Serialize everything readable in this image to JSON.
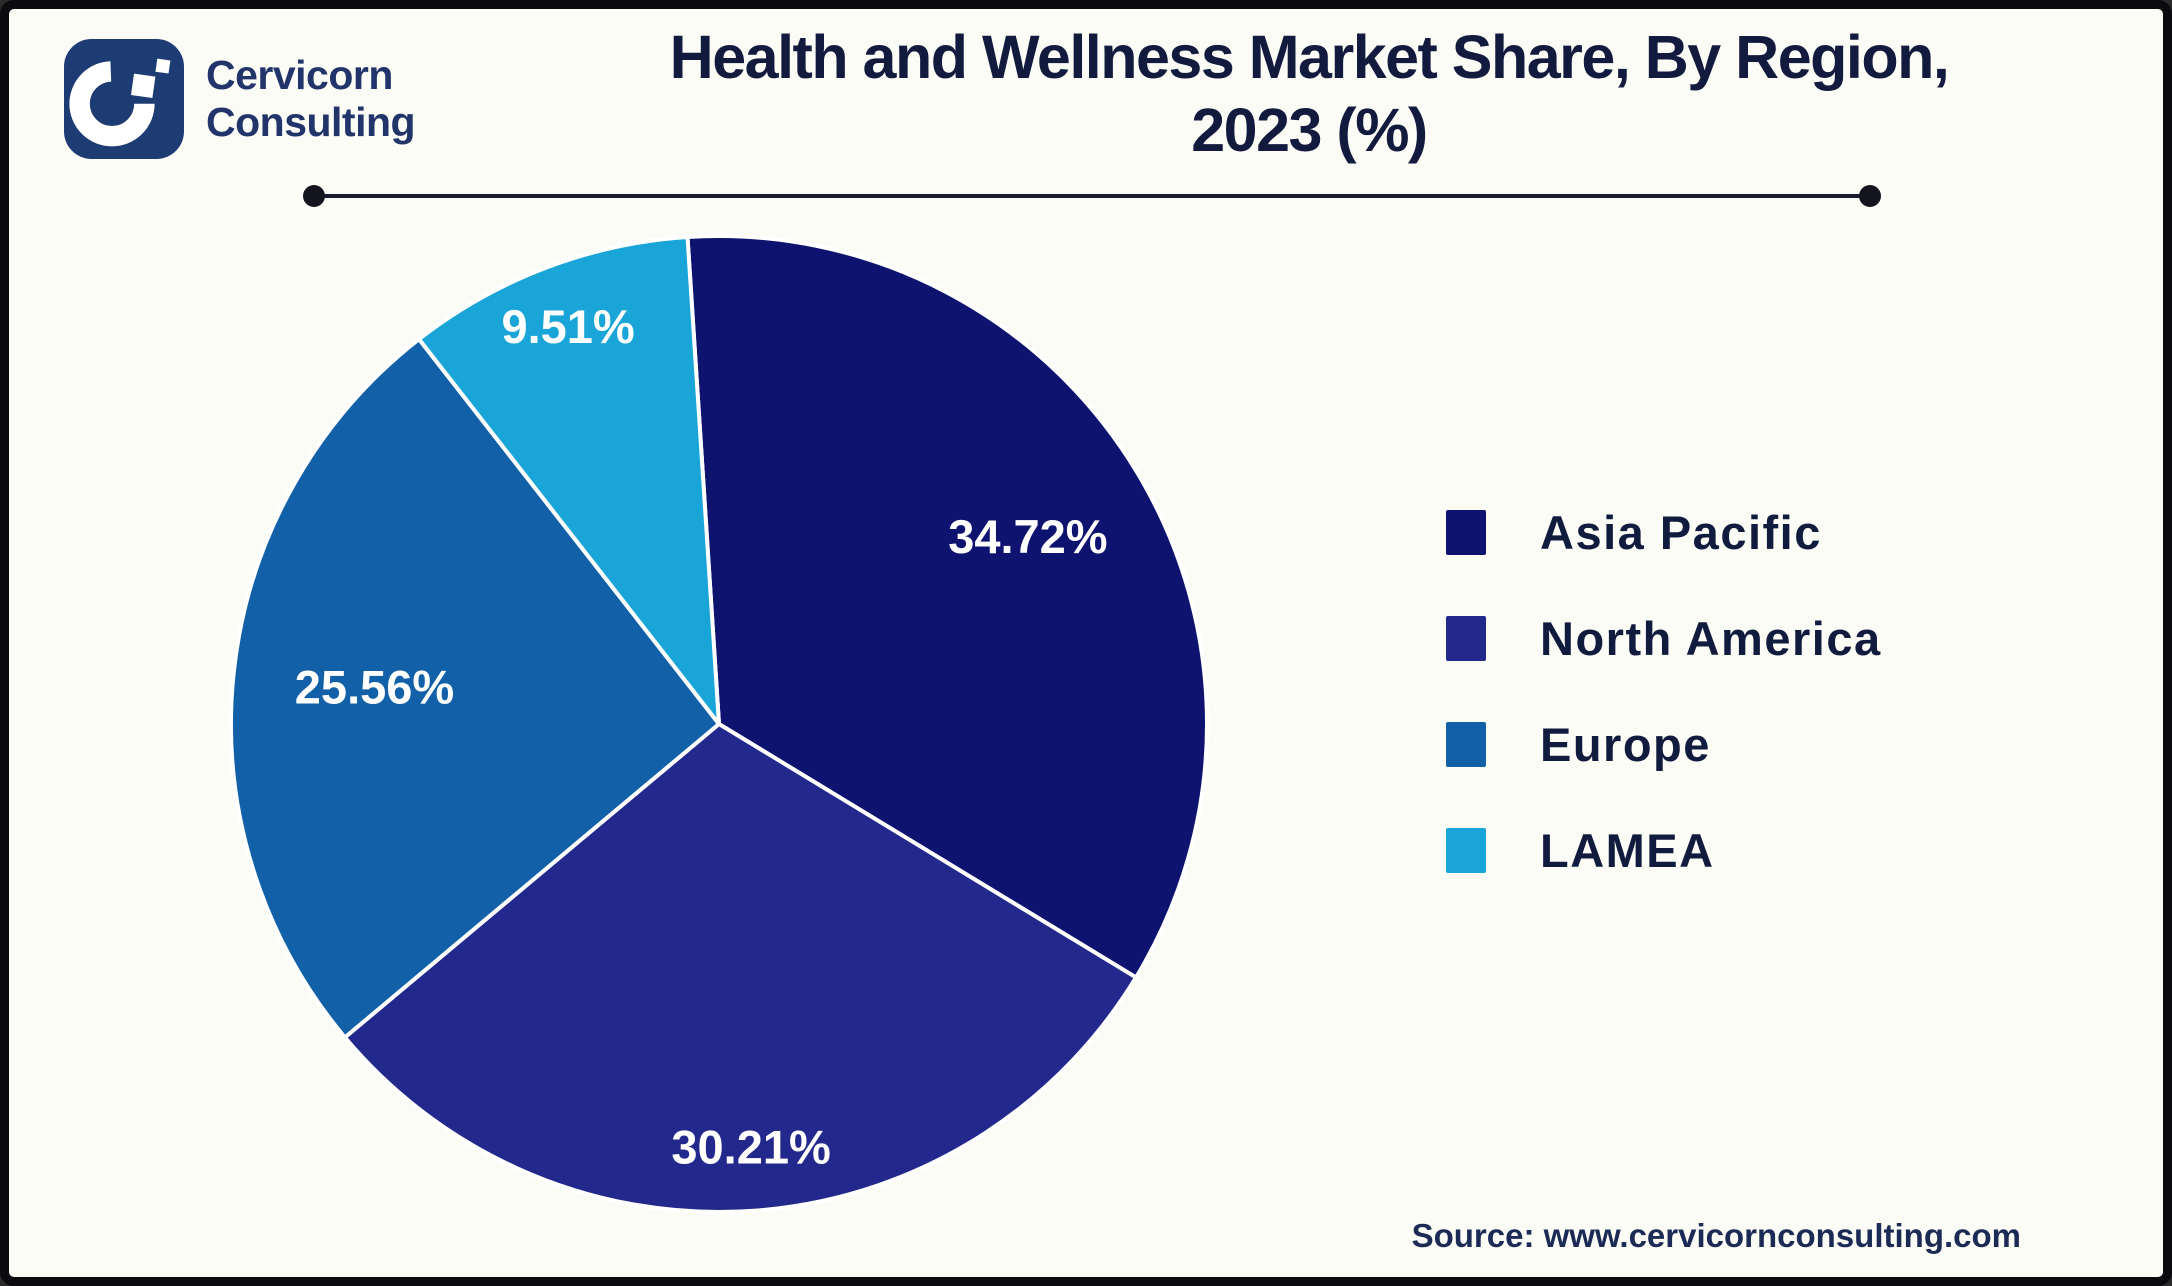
{
  "brand": {
    "name_line1": "Cervicorn",
    "name_line2": "Consulting",
    "logo_color": "#1e3c74"
  },
  "title": {
    "line1": "Health and Wellness Market Share, By Region,",
    "line2": "2023 (%)"
  },
  "chart_data": {
    "type": "pie",
    "title": "Health and Wellness Market Share, By Region, 2023 (%)",
    "unit": "%",
    "start_angle_deg_from_top": -3.7,
    "slice_border_color": "#ffffff",
    "data_label_color": "#ffffff",
    "legend_position": "right",
    "slices": [
      {
        "label": "Asia Pacific",
        "value": 34.72,
        "display": "34.72%",
        "color": "#0e1370"
      },
      {
        "label": "North America",
        "value": 30.21,
        "display": "30.21%",
        "color": "#23298c"
      },
      {
        "label": "Europe",
        "value": 25.56,
        "display": "25.56%",
        "color": "#1160a8"
      },
      {
        "label": "LAMEA",
        "value": 9.51,
        "display": "9.51%",
        "color": "#1aa5d8"
      }
    ]
  },
  "source": {
    "text": "Source: www.cervicornconsulting.com"
  }
}
